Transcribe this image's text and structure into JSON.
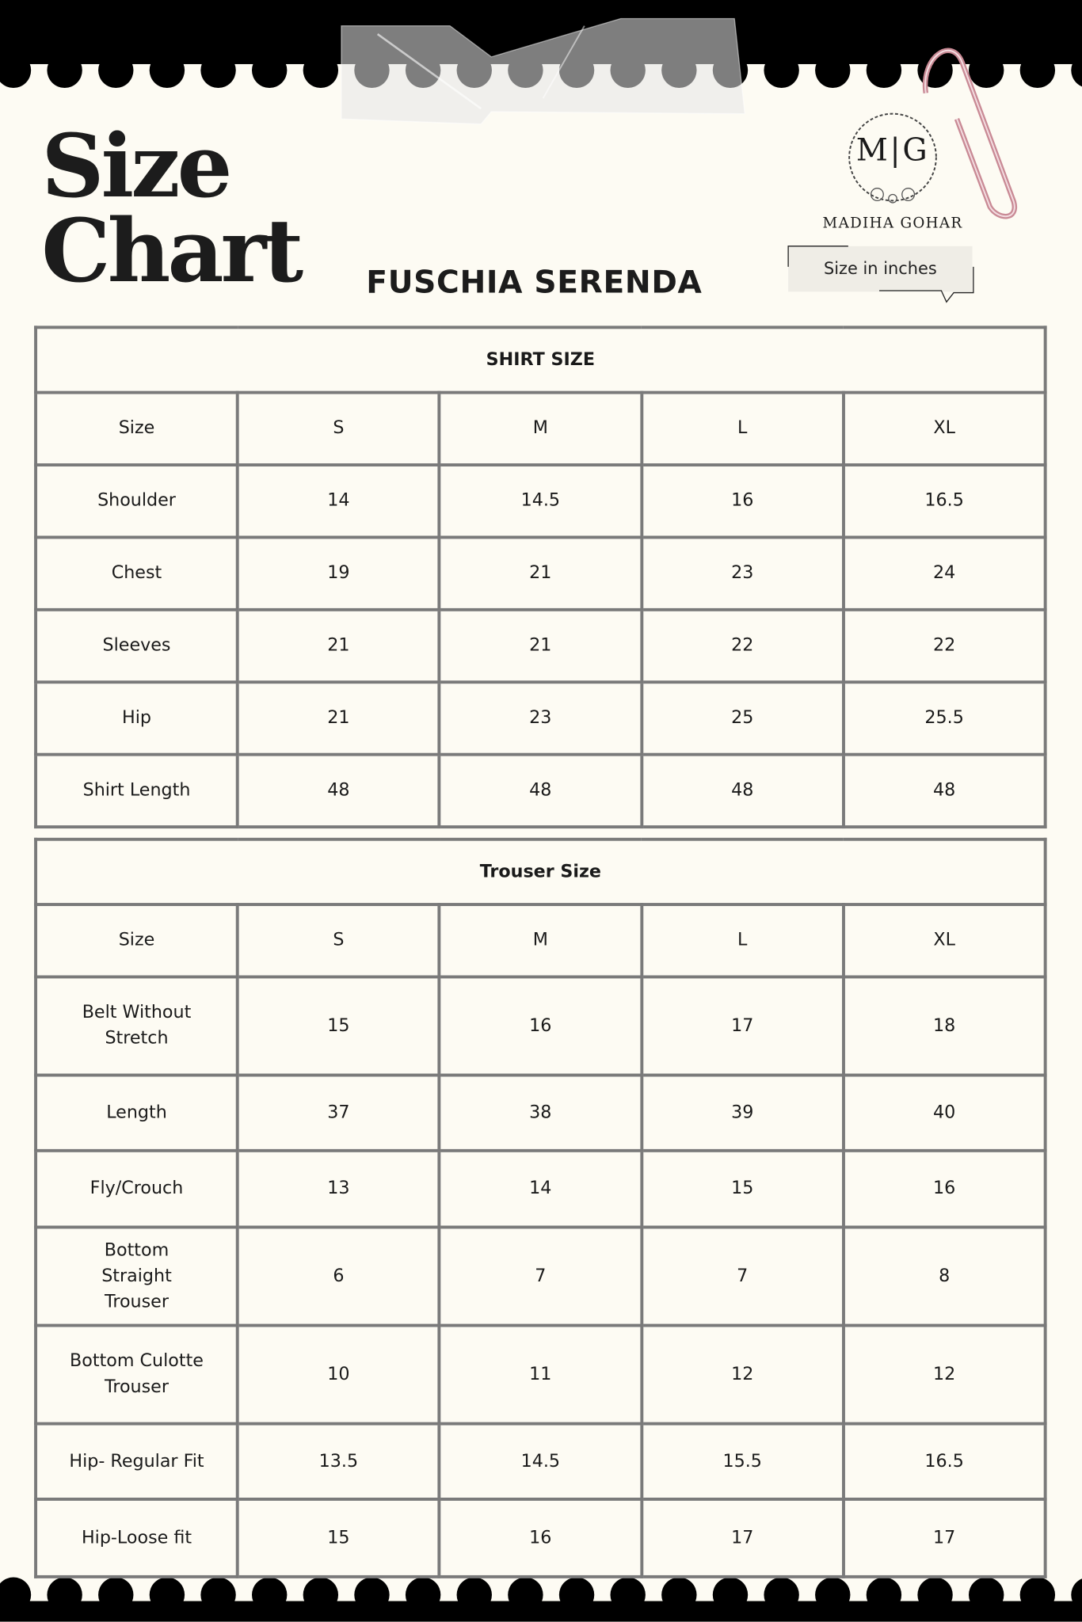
{
  "header": {
    "title_line1": "Size",
    "title_line2": "Chart",
    "product_name": "FUSCHIA SERENDA",
    "brand": "MADIHA GOHAR",
    "brand_monogram": "M|G",
    "unit_note": "Size in inches"
  },
  "shirt_table": {
    "title": "SHIRT SIZE",
    "columns": [
      "Size",
      "S",
      "M",
      "L",
      "XL"
    ],
    "rows": [
      [
        "Shoulder",
        "14",
        "14.5",
        "16",
        "16.5"
      ],
      [
        "Chest",
        "19",
        "21",
        "23",
        "24"
      ],
      [
        "Sleeves",
        "21",
        "21",
        "22",
        "22"
      ],
      [
        "Hip",
        "21",
        "23",
        "25",
        "25.5"
      ],
      [
        "Shirt Length",
        "48",
        "48",
        "48",
        "48"
      ]
    ]
  },
  "trouser_table": {
    "title": "Trouser Size",
    "columns": [
      "Size",
      "S",
      "M",
      "L",
      "XL"
    ],
    "rows": [
      [
        "Belt Without Stretch",
        "15",
        "16",
        "17",
        "18"
      ],
      [
        "Length",
        "37",
        "38",
        "39",
        "40"
      ],
      [
        "Fly/Crouch",
        "13",
        "14",
        "15",
        "16"
      ],
      [
        "Bottom Straight Trouser",
        "6",
        "7",
        "7",
        "8"
      ],
      [
        "Bottom Culotte Trouser",
        "10",
        "11",
        "12",
        "12"
      ],
      [
        "Hip- Regular Fit",
        "13.5",
        "14.5",
        "15.5",
        "16.5"
      ],
      [
        "Hip-Loose fit",
        "15",
        "16",
        "17",
        "17"
      ]
    ]
  },
  "colors": {
    "background": "#fdfbf3",
    "border": "#7a7a7a",
    "band": "#000000",
    "paperclip": "#c98a95"
  }
}
